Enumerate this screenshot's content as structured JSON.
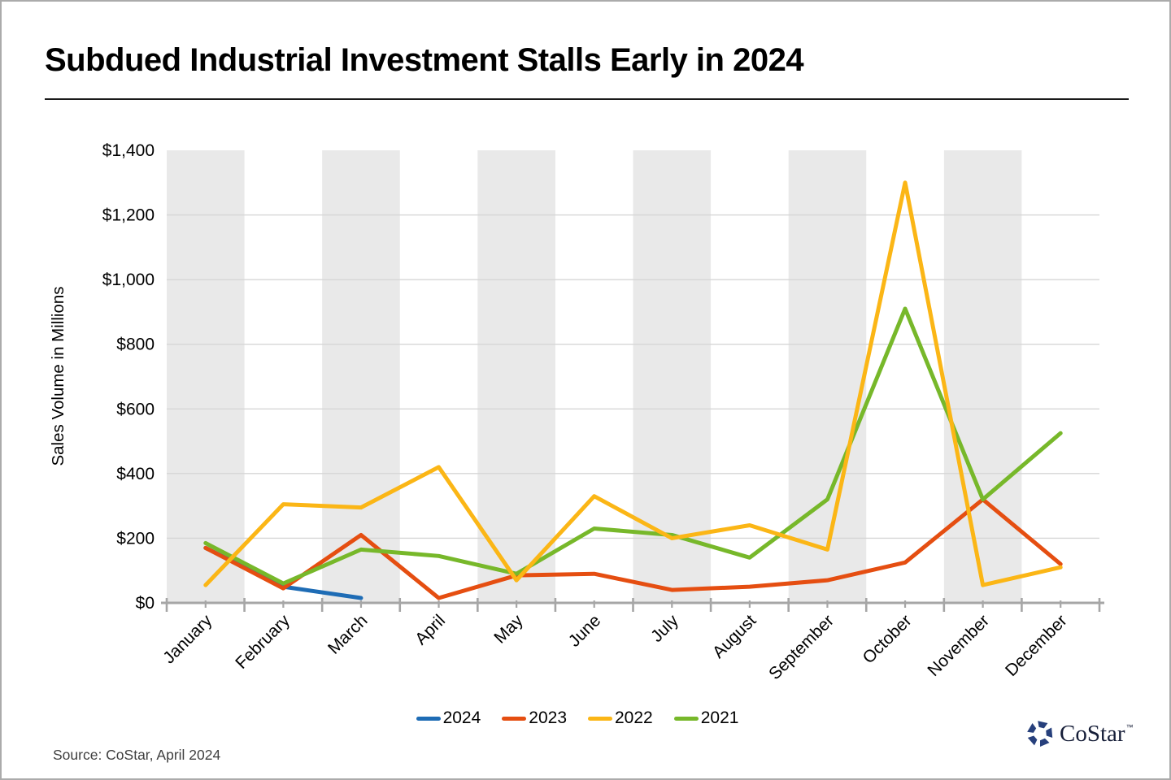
{
  "header": {
    "title": "Subdued Industrial Investment Stalls Early in 2024"
  },
  "chart_data": {
    "type": "line",
    "title": "Subdued Industrial Investment Stalls Early in 2024",
    "xlabel": "",
    "ylabel": "Sales Volume in Millions",
    "ylim": [
      0,
      1400
    ],
    "grid": "horizontal",
    "plot_bands": "alternating-gray",
    "legend_position": "bottom",
    "y_ticks": [
      {
        "value": 0,
        "label": "$0"
      },
      {
        "value": 200,
        "label": "$200"
      },
      {
        "value": 400,
        "label": "$400"
      },
      {
        "value": 600,
        "label": "$600"
      },
      {
        "value": 800,
        "label": "$800"
      },
      {
        "value": 1000,
        "label": "$1,000"
      },
      {
        "value": 1200,
        "label": "$1,200"
      },
      {
        "value": 1400,
        "label": "$1,400"
      }
    ],
    "categories": [
      "January",
      "February",
      "March",
      "April",
      "May",
      "June",
      "July",
      "August",
      "September",
      "October",
      "November",
      "December"
    ],
    "series": [
      {
        "name": "2024",
        "color": "#1E6CB5",
        "values": [
          170,
          50,
          15
        ]
      },
      {
        "name": "2023",
        "color": "#E54E11",
        "values": [
          170,
          45,
          210,
          15,
          85,
          90,
          40,
          50,
          70,
          125,
          320,
          120
        ]
      },
      {
        "name": "2022",
        "color": "#FBB616",
        "values": [
          55,
          305,
          295,
          420,
          70,
          330,
          200,
          240,
          165,
          1300,
          55,
          110
        ]
      },
      {
        "name": "2021",
        "color": "#77B82A",
        "values": [
          185,
          60,
          165,
          145,
          90,
          230,
          210,
          140,
          320,
          910,
          320,
          525
        ]
      }
    ]
  },
  "footer": {
    "source": "Source: CoStar, April 2024",
    "logo_text": "CoStar",
    "logo_tm": "™"
  }
}
